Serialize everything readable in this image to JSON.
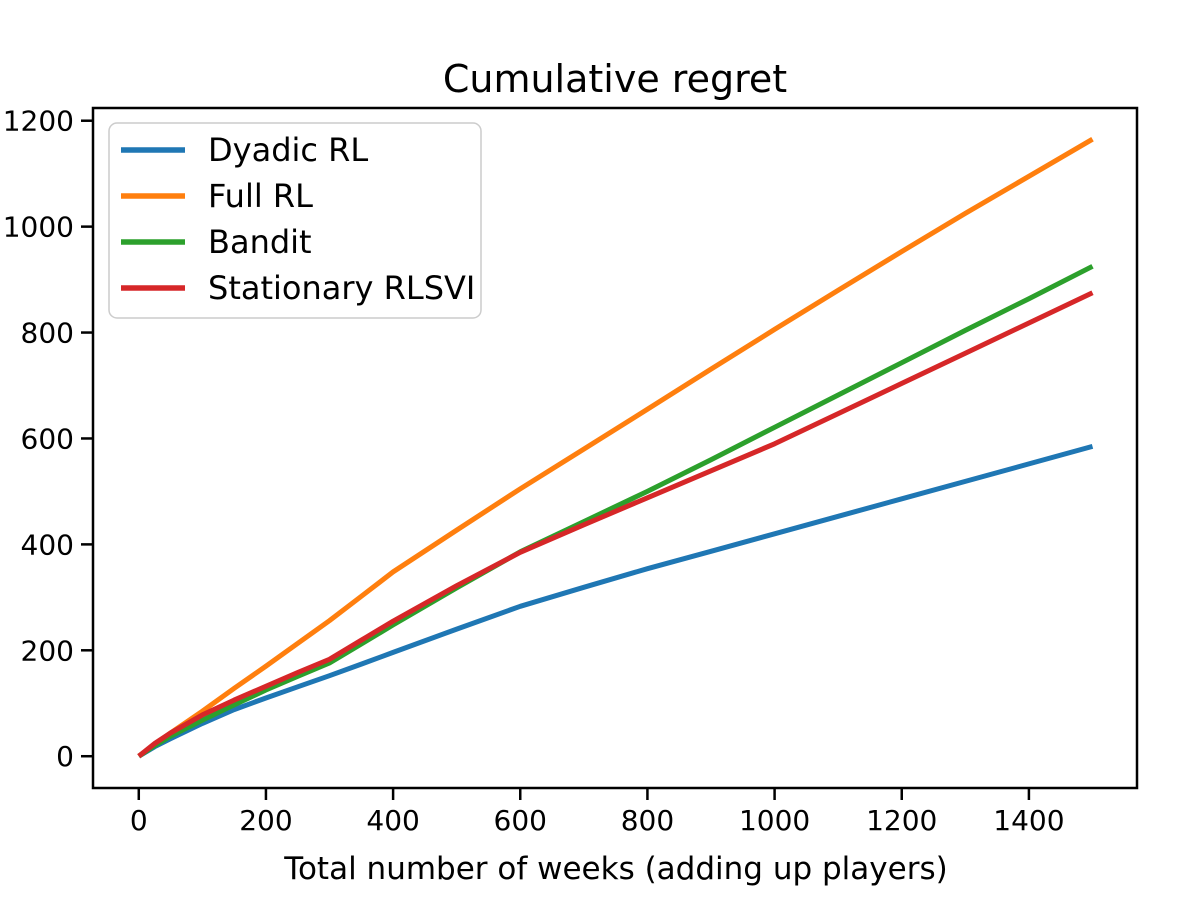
{
  "chart_data": {
    "type": "line",
    "title": "Cumulative regret",
    "xlabel": "Total number of weeks (adding up players)",
    "ylabel": "",
    "x": [
      0,
      25,
      50,
      100,
      150,
      200,
      250,
      300,
      350,
      400,
      500,
      600,
      700,
      800,
      900,
      1000,
      1100,
      1200,
      1300,
      1400,
      1500
    ],
    "series": [
      {
        "name": "Dyadic RL",
        "color": "#1f77b4",
        "values": [
          0,
          18,
          33,
          62,
          88,
          110,
          131,
          152,
          174,
          196,
          240,
          283,
          319,
          354,
          387,
          420,
          453,
          486,
          519,
          552,
          585
        ]
      },
      {
        "name": "Full RL",
        "color": "#ff7f0e",
        "values": [
          0,
          22,
          44,
          85,
          128,
          170,
          213,
          256,
          302,
          348,
          427,
          505,
          580,
          655,
          731,
          806,
          880,
          953,
          1025,
          1095,
          1165
        ]
      },
      {
        "name": "Bandit",
        "color": "#2ca02c",
        "values": [
          0,
          20,
          38,
          68,
          97,
          125,
          151,
          176,
          212,
          248,
          318,
          386,
          443,
          500,
          560,
          621,
          682,
          743,
          804,
          864,
          925
        ]
      },
      {
        "name": "Stationary RLSVI",
        "color": "#d62728",
        "values": [
          0,
          24,
          44,
          78,
          106,
          132,
          158,
          183,
          219,
          255,
          322,
          385,
          437,
          488,
          539,
          590,
          647,
          704,
          761,
          818,
          875
        ]
      }
    ],
    "xticks": [
      0,
      200,
      400,
      600,
      800,
      1000,
      1200,
      1400
    ],
    "yticks": [
      0,
      200,
      400,
      600,
      800,
      1000,
      1200
    ],
    "xlim": [
      -72,
      1570
    ],
    "ylim": [
      -60,
      1224
    ],
    "grid": false,
    "legend_position": "upper left",
    "axis_color": "#000000",
    "legend_border_color": "#cccccc",
    "background": "#ffffff"
  }
}
